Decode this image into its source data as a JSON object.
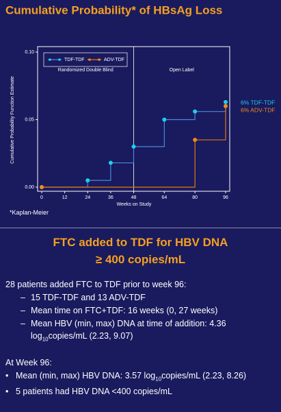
{
  "chart_data": {
    "type": "step",
    "title": "Cumulative Probability* of HBsAg Loss",
    "y_label": "Cumulative Probability Function Estimate",
    "x_label": "Weeks on Study",
    "regions": [
      "Randomized Double Blind",
      "Open Label"
    ],
    "divider": 48,
    "x": [
      0,
      24,
      36,
      48,
      64,
      80,
      96
    ],
    "series": [
      {
        "name": "TDF-TDF",
        "color": "#1ad0f0",
        "line_color": "#4a8ad8",
        "values": [
          0,
          0.005,
          0.018,
          0.03,
          0.05,
          0.056,
          0.063
        ]
      },
      {
        "name": "ADV-TDF",
        "color": "#f08a1a",
        "line_color": "#e07a10",
        "values": [
          0,
          null,
          null,
          null,
          null,
          0.035,
          0.06
        ]
      }
    ],
    "end_labels": [
      "6% TDF-TDF",
      "6% ADV-TDF"
    ],
    "footnote": "*Kaplan-Meier",
    "xlim": [
      0,
      96
    ],
    "xticks": [
      0,
      12,
      24,
      36,
      48,
      64,
      80,
      96
    ],
    "ylim": [
      0,
      0.1
    ],
    "yticks": [
      {
        "value": 0,
        "label": "0.00"
      },
      {
        "value": 0.05,
        "label": "0.05"
      },
      {
        "value": 0.1,
        "label": "0.10"
      }
    ]
  },
  "slide2": {
    "title_lines": [
      "FTC added to TDF  for HBV DNA",
      "≥ 400 copies/mL"
    ],
    "sections": [
      {
        "heading": "28 patients added FTC to TDF prior to week 96:",
        "items": [
          {
            "marker": "–",
            "lines": [
              [
                {
                  "text": "15 TDF-TDF and 13 ADV-TDF"
                }
              ]
            ]
          },
          {
            "marker": "–",
            "lines": [
              [
                {
                  "text": "Mean time on FTC+TDF: 16 weeks (0, 27 weeks)"
                }
              ]
            ]
          },
          {
            "marker": "–",
            "lines": [
              [
                {
                  "text": "Mean HBV (min, max) DNA at time of addition: 4.36"
                }
              ],
              [
                {
                  "text": "log"
                },
                {
                  "text": "10",
                  "sub": true
                },
                {
                  "text": "copies/mL (2.23, 9.07)"
                }
              ]
            ]
          }
        ]
      },
      {
        "heading": "At Week 96:",
        "items": [
          {
            "marker": "•",
            "lines": [
              [
                {
                  "text": "Mean (min, max) HBV DNA: 3.57 log"
                },
                {
                  "text": "10",
                  "sub": true
                },
                {
                  "text": "copies/mL (2.23, 8.26)"
                }
              ]
            ]
          },
          {
            "marker": "•",
            "lines": [
              [
                {
                  "text": "5 patients had HBV DNA <400 copies/mL"
                }
              ]
            ]
          }
        ]
      }
    ]
  }
}
